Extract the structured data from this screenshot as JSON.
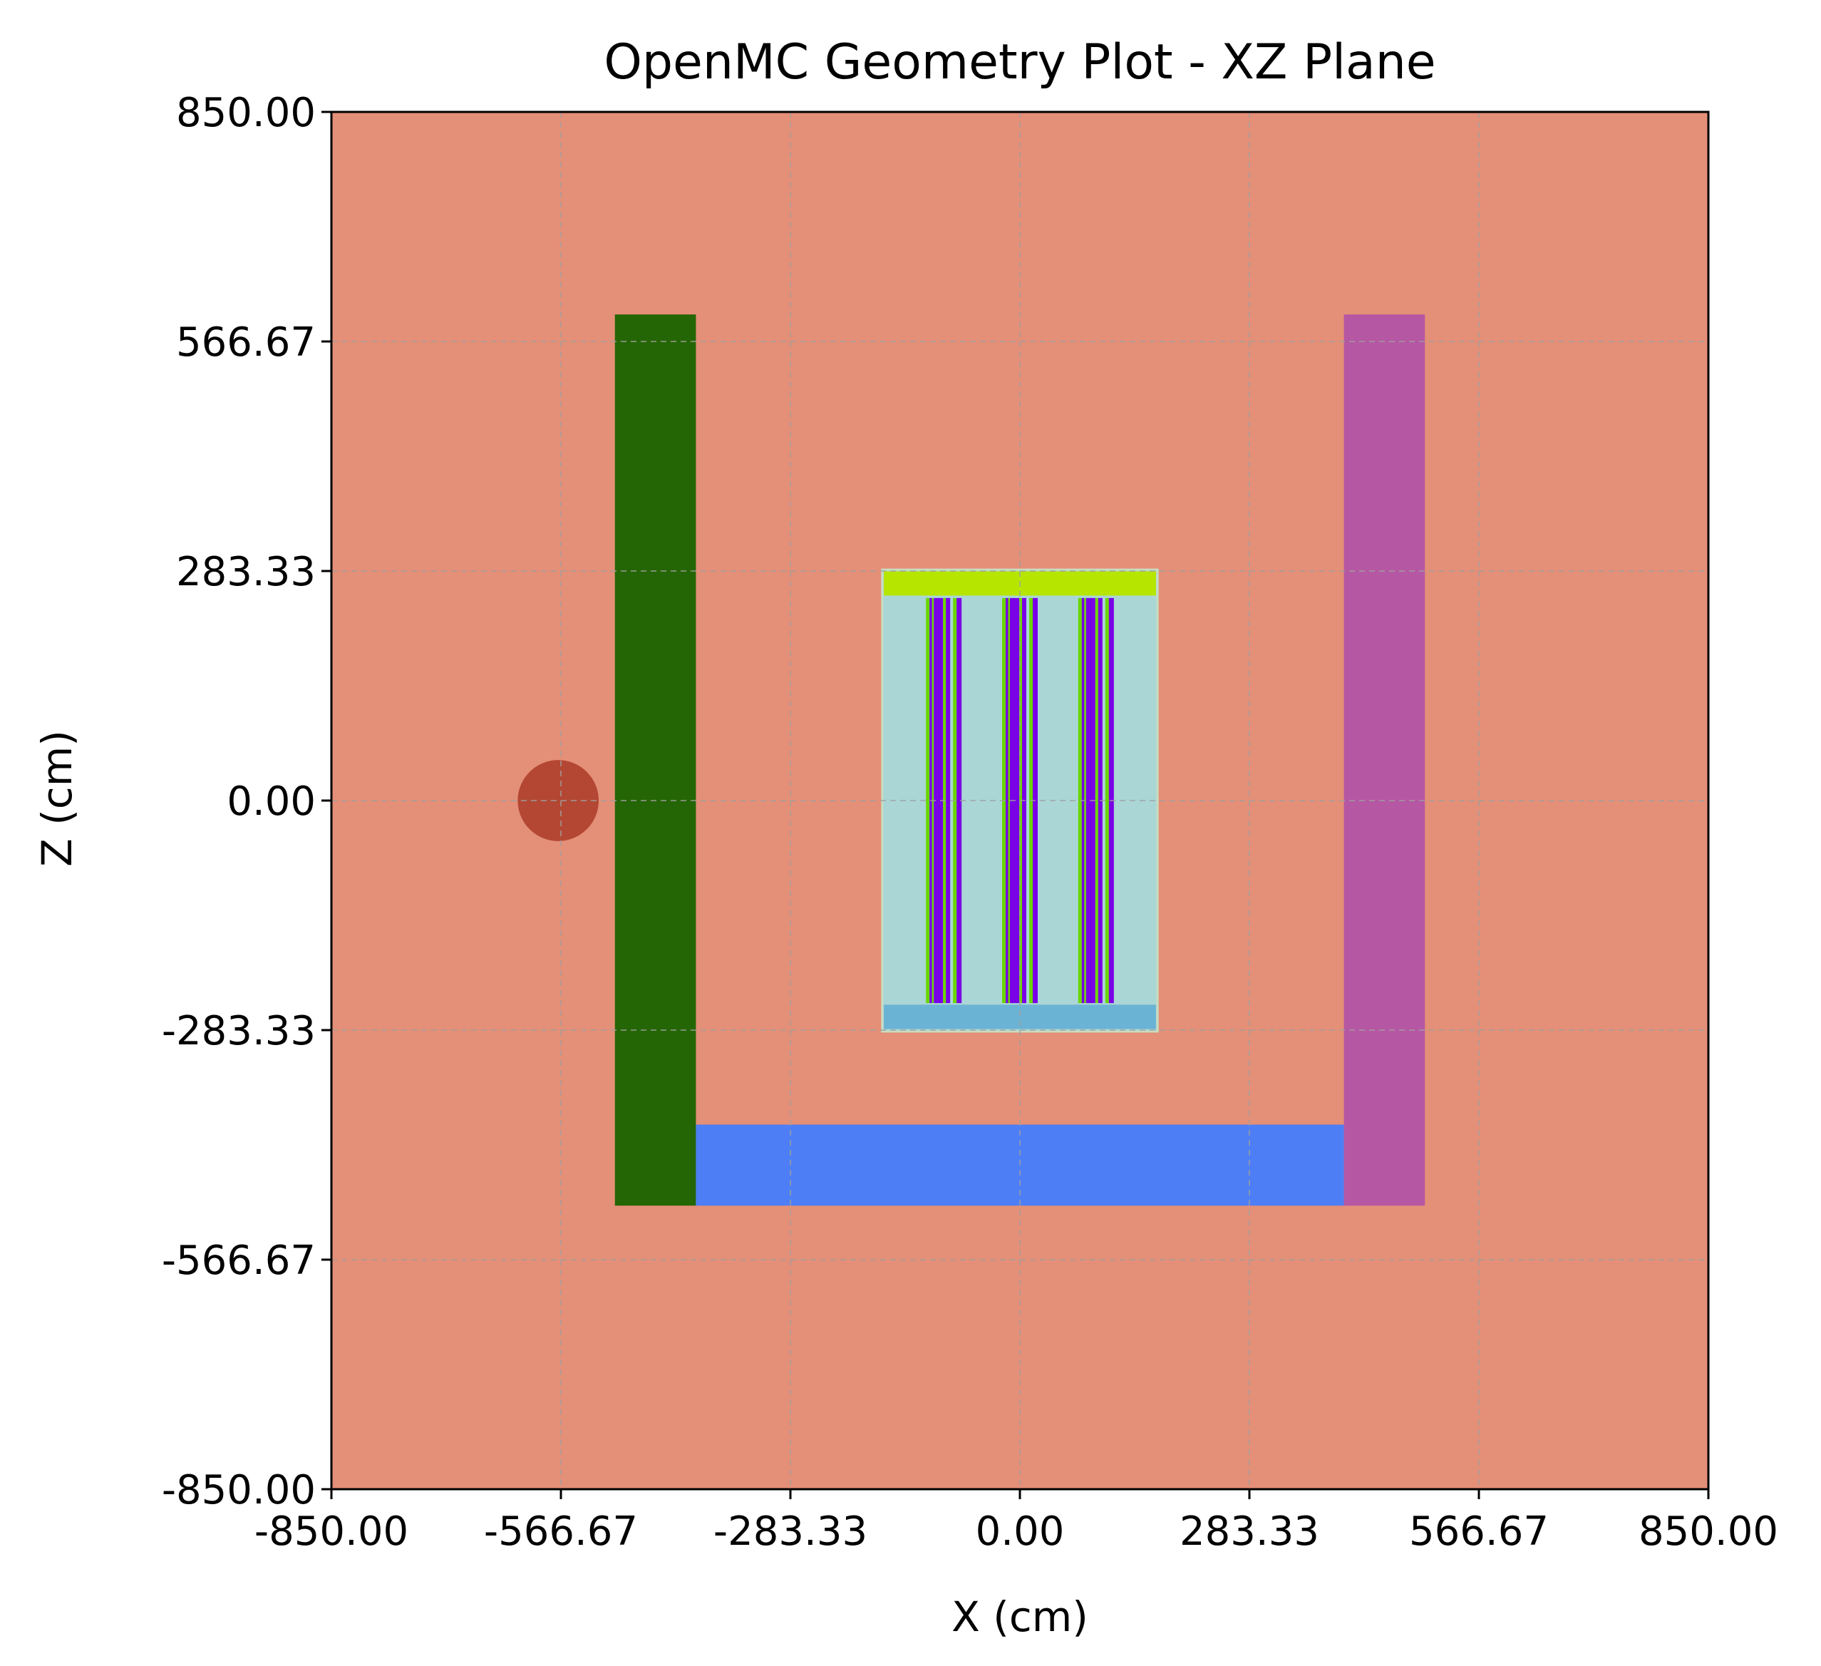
{
  "chart_data": {
    "type": "heatmap",
    "title": "OpenMC Geometry Plot - XZ Plane",
    "xlabel": "X (cm)",
    "ylabel": "Z (cm)",
    "xlim": [
      -850,
      850
    ],
    "ylim": [
      -850,
      850
    ],
    "xticks": [
      -850,
      -566.67,
      -283.33,
      0,
      283.33,
      566.67,
      850
    ],
    "yticks": [
      -850,
      -566.67,
      -283.33,
      0,
      283.33,
      566.67,
      850
    ],
    "xtick_labels": [
      "-850.00",
      "-566.67",
      "-283.33",
      "0.00",
      "283.33",
      "566.67",
      "850.00"
    ],
    "ytick_labels": [
      "-850.00",
      "-566.67",
      "-283.33",
      "0.00",
      "283.33",
      "566.67",
      "850.00"
    ],
    "grid": true,
    "background_color": "#e48f77",
    "regions": [
      {
        "name": "left-wall",
        "shape": "rect",
        "x": [
          -500,
          -400
        ],
        "z": [
          -500,
          600
        ],
        "color": "#246605"
      },
      {
        "name": "right-wall",
        "shape": "rect",
        "x": [
          400,
          500
        ],
        "z": [
          -500,
          600
        ],
        "color": "#b657a4"
      },
      {
        "name": "floor",
        "shape": "rect",
        "x": [
          -400,
          400
        ],
        "z": [
          -500,
          -400
        ],
        "color": "#4d7ef5"
      },
      {
        "name": "source-sphere",
        "shape": "circle",
        "cx": -570,
        "cz": 0,
        "r": 50,
        "color": "#b34733"
      },
      {
        "name": "vessel",
        "shape": "rect",
        "x": [
          -170,
          170
        ],
        "z": [
          -285,
          285
        ],
        "color": "#aad6d6",
        "stroke": "#c8dcc0"
      },
      {
        "name": "top-plate",
        "shape": "rect",
        "x": [
          -168,
          168
        ],
        "z": [
          253,
          283
        ],
        "color": "#b6e600"
      },
      {
        "name": "bottom-plate",
        "shape": "rect",
        "x": [
          -168,
          168
        ],
        "z": [
          -282,
          -252
        ],
        "color": "#6bb3d4"
      }
    ],
    "rod_groups": [
      {
        "name": "rod-group-left",
        "x": [
          -116,
          -72
        ],
        "z": [
          -250,
          250
        ],
        "fuel_color": "#7a00e6",
        "clad_color": "#6ad600"
      },
      {
        "name": "rod-group-center",
        "x": [
          -22,
          22
        ],
        "z": [
          -250,
          250
        ],
        "fuel_color": "#7a00e6",
        "clad_color": "#6ad600"
      },
      {
        "name": "rod-group-right",
        "x": [
          72,
          116
        ],
        "z": [
          -250,
          250
        ],
        "fuel_color": "#7a00e6",
        "clad_color": "#6ad600"
      }
    ]
  }
}
